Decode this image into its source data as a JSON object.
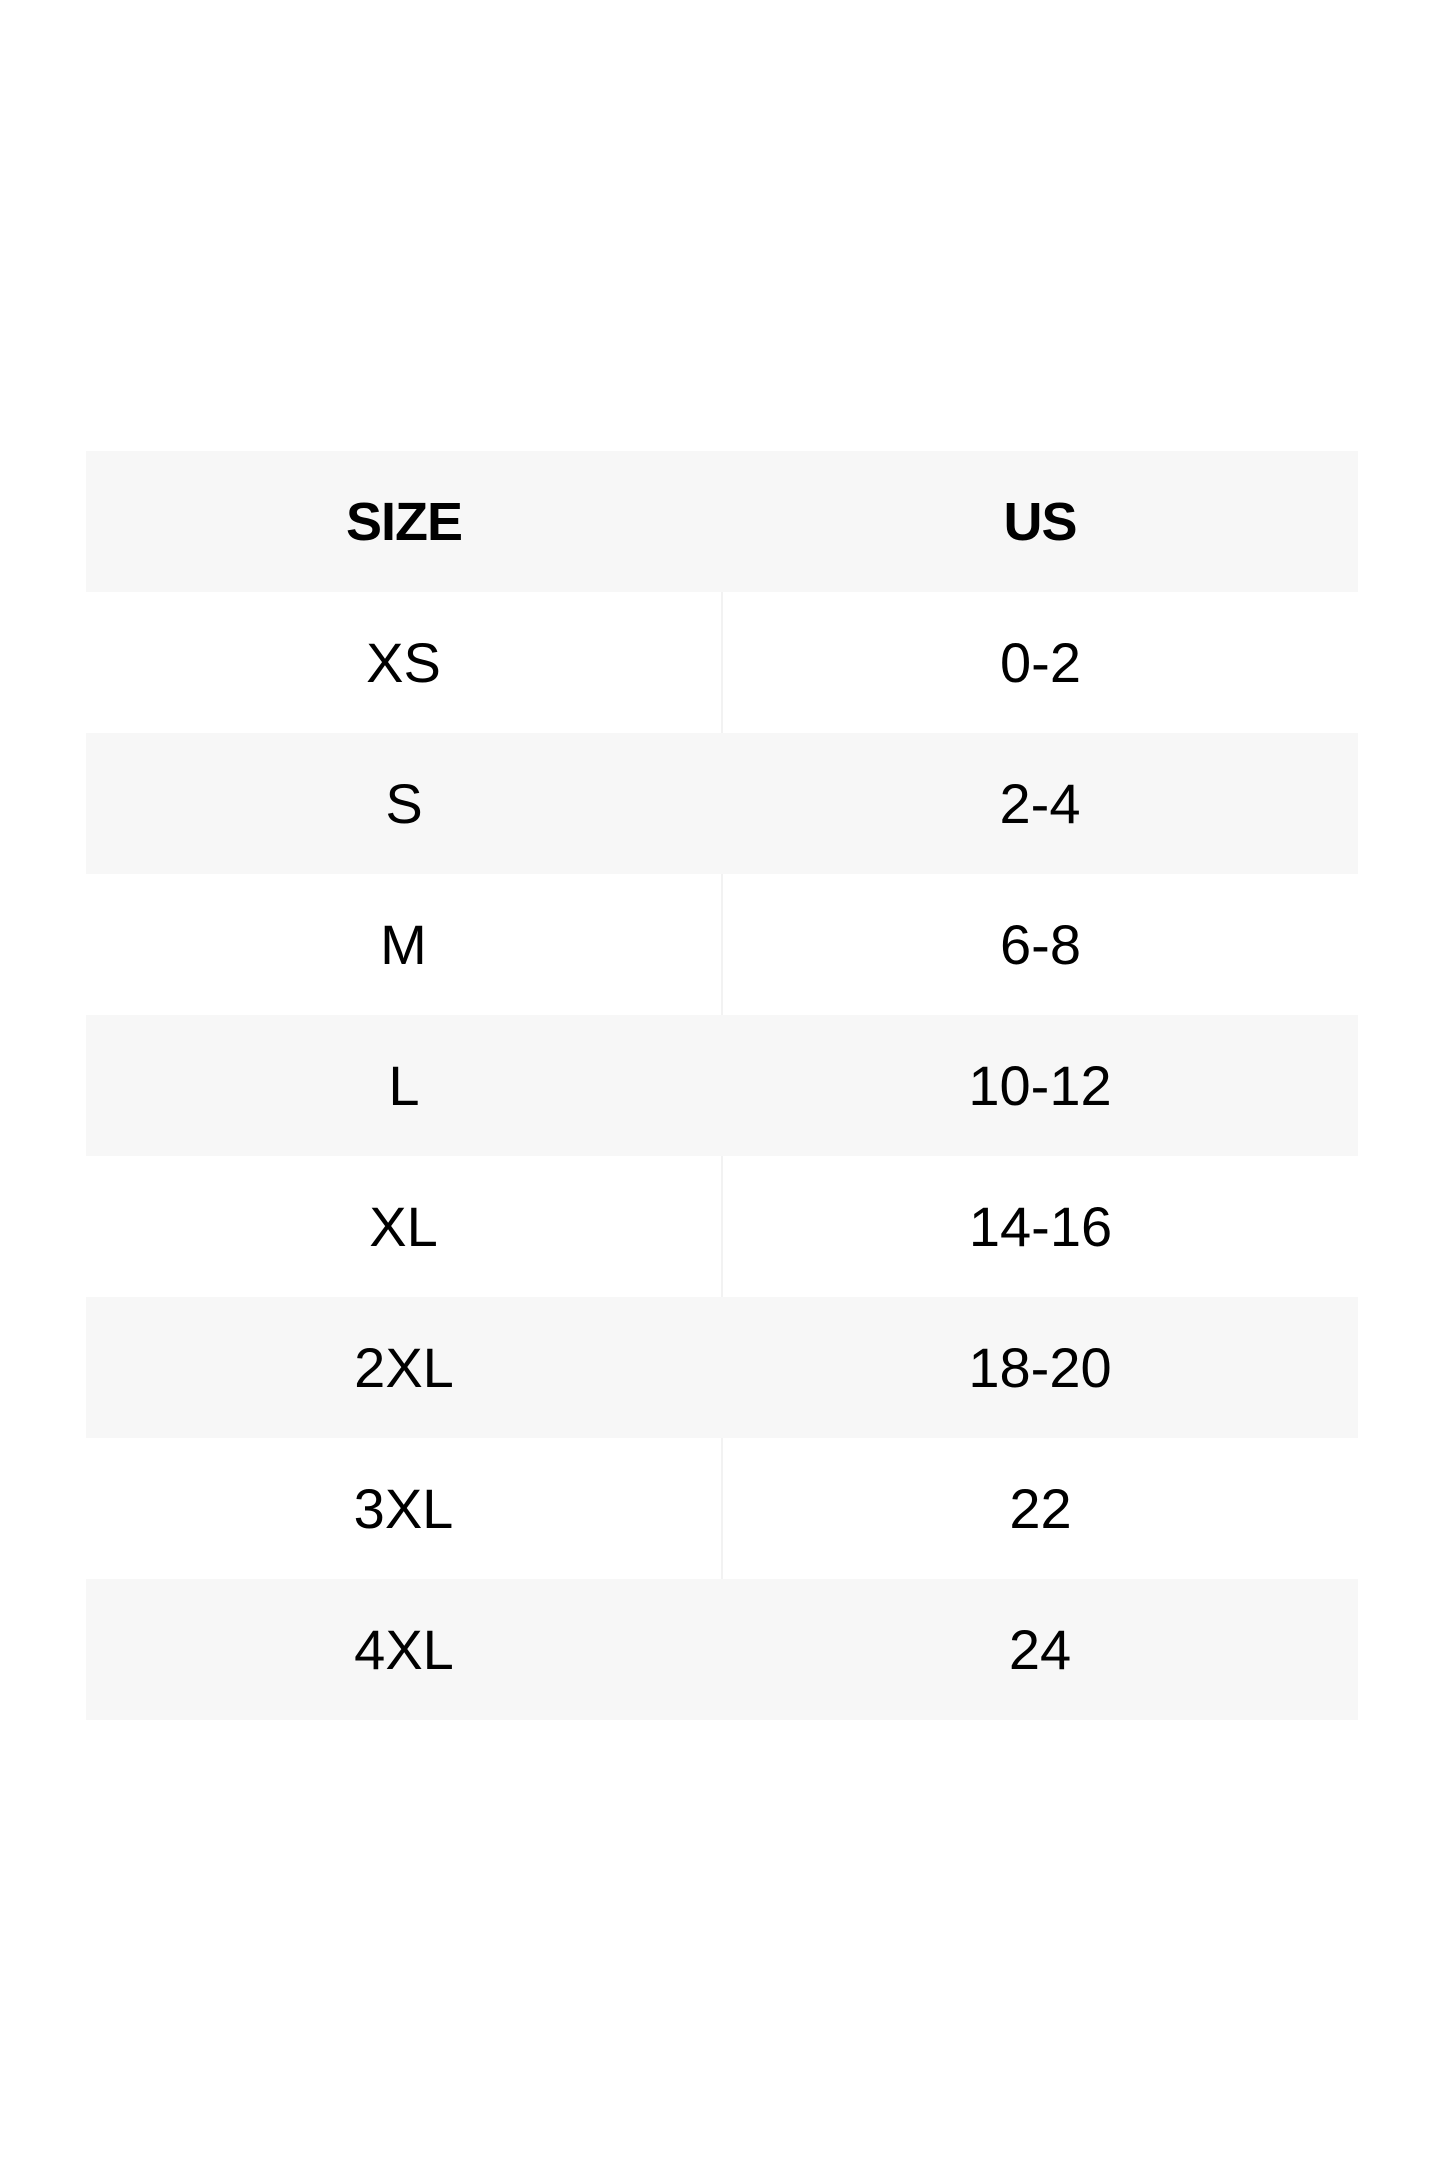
{
  "size_chart": {
    "headers": [
      "SIZE",
      "US"
    ],
    "rows": [
      [
        "XS",
        "0-2"
      ],
      [
        "S",
        "2-4"
      ],
      [
        "M",
        "6-8"
      ],
      [
        "L",
        "10-12"
      ],
      [
        "XL",
        "14-16"
      ],
      [
        "2XL",
        "18-20"
      ],
      [
        "3XL",
        "22"
      ],
      [
        "4XL",
        "24"
      ]
    ],
    "colors": {
      "shaded_row": "#f7f7f7",
      "background": "#ffffff",
      "text": "#000000"
    }
  }
}
